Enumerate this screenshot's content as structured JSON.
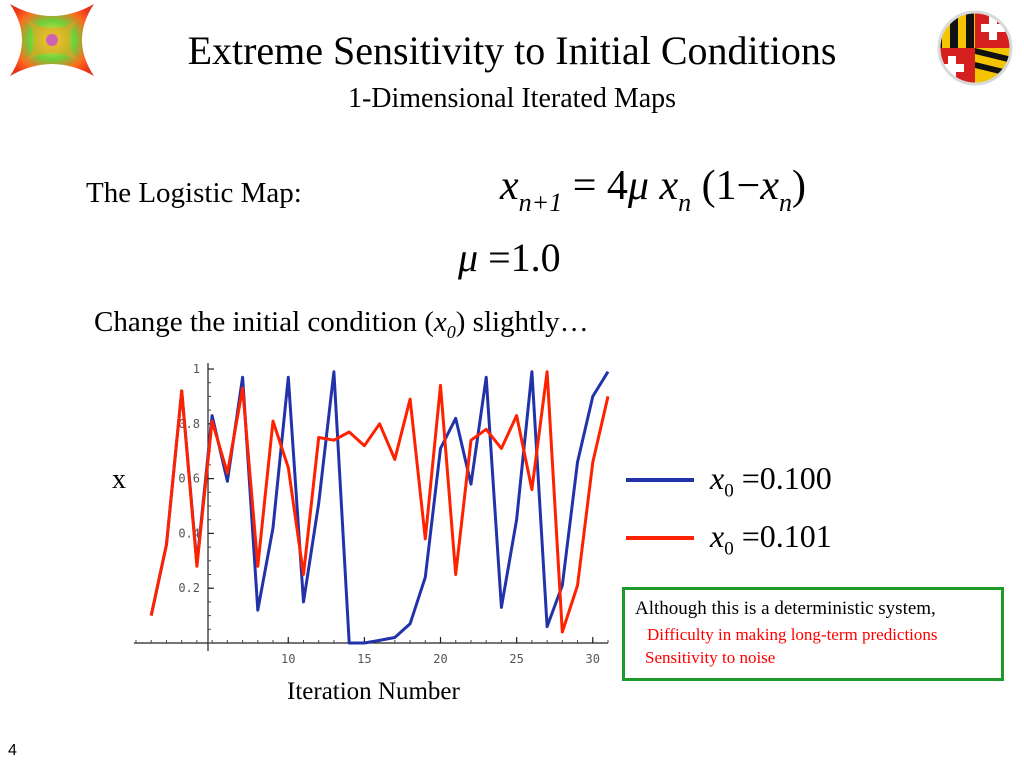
{
  "header": {
    "title": "Extreme Sensitivity to Initial Conditions",
    "subtitle": "1-Dimensional Iterated Maps"
  },
  "logistic_map": {
    "label": "The Logistic Map:",
    "x": "x",
    "sub_next": "n+1",
    "equals": "=",
    "four": "4",
    "mu": "μ",
    "sub_n": "n",
    "open_paren": "(1−",
    "close_paren": ")"
  },
  "mu_value": {
    "mu": "μ",
    "equals": "=",
    "value": "1.0"
  },
  "change_text": {
    "before": "Change the initial condition (",
    "var": "x",
    "sub": "0",
    "after": ") slightly…"
  },
  "legend": [
    {
      "var": "x",
      "sub": "0",
      "equals": "=",
      "value": "0.100",
      "color": "#2233aa"
    },
    {
      "var": "x",
      "sub": "0",
      "equals": "=",
      "value": "0.101",
      "color": "#ff2200"
    }
  ],
  "note": {
    "line1": "Although this is a deterministic system,",
    "line2": "Difficulty in making long-term predictions",
    "line3": "Sensitivity to noise",
    "border_color": "#1f9a2a",
    "accent_color": "#ff0000"
  },
  "page_number": "4",
  "icons": {
    "left_logo": "fractal-logo-icon",
    "right_logo": "maryland-flag-logo-icon"
  },
  "chart_data": {
    "type": "line",
    "xlabel": "Iteration Number",
    "ylabel": "x",
    "xlim": [
      0,
      31
    ],
    "ylim": [
      0,
      1
    ],
    "xticks": [
      10,
      15,
      20,
      25,
      30
    ],
    "yticks": [
      0.2,
      0.4,
      0.6,
      0.8,
      1
    ],
    "grid": false,
    "series": [
      {
        "color": "#2233aa",
        "x": [
          1,
          2,
          3,
          4,
          5,
          6,
          7,
          8,
          9,
          10,
          11,
          12,
          13,
          14,
          15,
          16,
          17,
          18,
          19,
          20,
          21,
          22,
          23,
          24,
          25,
          26,
          27,
          28,
          29,
          30,
          31
        ],
        "y": [
          0.1,
          0.36,
          0.92,
          0.29,
          0.83,
          0.59,
          0.97,
          0.12,
          0.42,
          0.97,
          0.15,
          0.51,
          0.99,
          0.0,
          0.0,
          0.01,
          0.02,
          0.07,
          0.24,
          0.71,
          0.82,
          0.58,
          0.97,
          0.13,
          0.45,
          0.99,
          0.06,
          0.21,
          0.66,
          0.9,
          0.99
        ]
      },
      {
        "color": "#ff2200",
        "x": [
          1,
          2,
          3,
          4,
          5,
          6,
          7,
          8,
          9,
          10,
          11,
          12,
          13,
          14,
          15,
          16,
          17,
          18,
          19,
          20,
          21,
          22,
          23,
          24,
          25,
          26,
          27,
          28,
          29,
          30,
          31
        ],
        "y": [
          0.1,
          0.36,
          0.92,
          0.28,
          0.81,
          0.62,
          0.93,
          0.28,
          0.81,
          0.64,
          0.25,
          0.75,
          0.74,
          0.77,
          0.72,
          0.8,
          0.67,
          0.89,
          0.38,
          0.94,
          0.25,
          0.74,
          0.78,
          0.71,
          0.83,
          0.56,
          0.99,
          0.04,
          0.21,
          0.66,
          0.9
        ]
      }
    ]
  }
}
